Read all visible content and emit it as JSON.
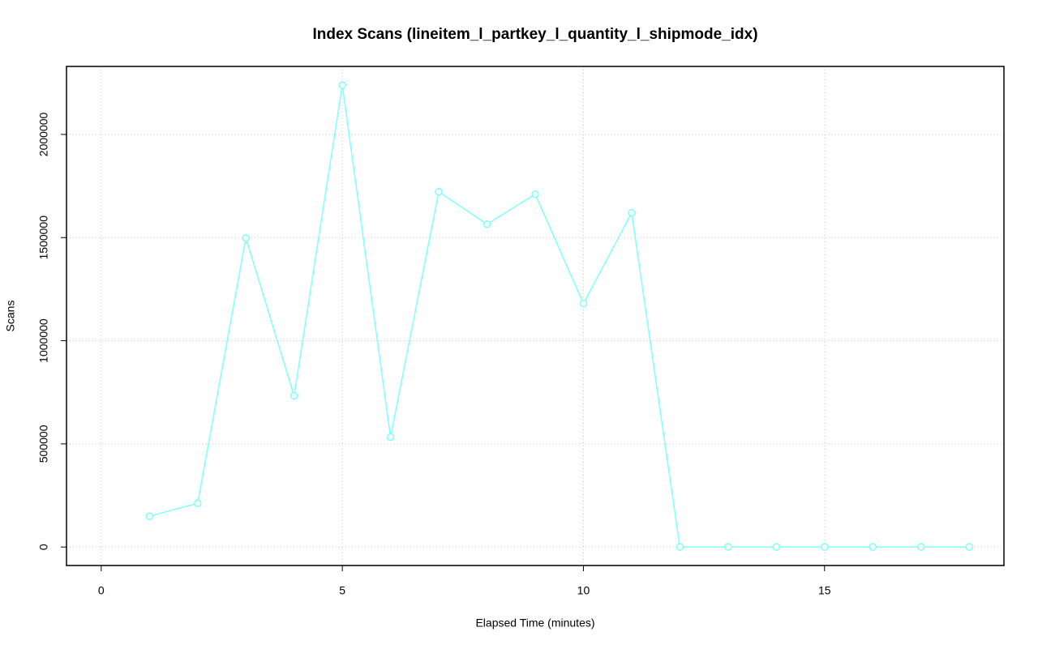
{
  "chart_data": {
    "type": "line",
    "title": "Index Scans (lineitem_l_partkey_l_quantity_l_shipmode_idx)",
    "xlabel": "Elapsed Time (minutes)",
    "ylabel": "Scans",
    "x": [
      1,
      2,
      3,
      4,
      5,
      6,
      7,
      8,
      9,
      10,
      11,
      12,
      13,
      14,
      15,
      16,
      17,
      18
    ],
    "values": [
      149000,
      212000,
      1498000,
      733000,
      2239000,
      533000,
      1722000,
      1565000,
      1710000,
      1180000,
      1620000,
      0,
      0,
      0,
      0,
      0,
      0,
      0
    ],
    "color": "#7fffff",
    "xlim": [
      -0.72,
      18.72
    ],
    "ylim": [
      -89600,
      2329600
    ],
    "xticks": [
      0,
      5,
      10,
      15
    ],
    "yticks": [
      0,
      500000,
      1000000,
      1500000,
      2000000
    ],
    "grid": true
  }
}
